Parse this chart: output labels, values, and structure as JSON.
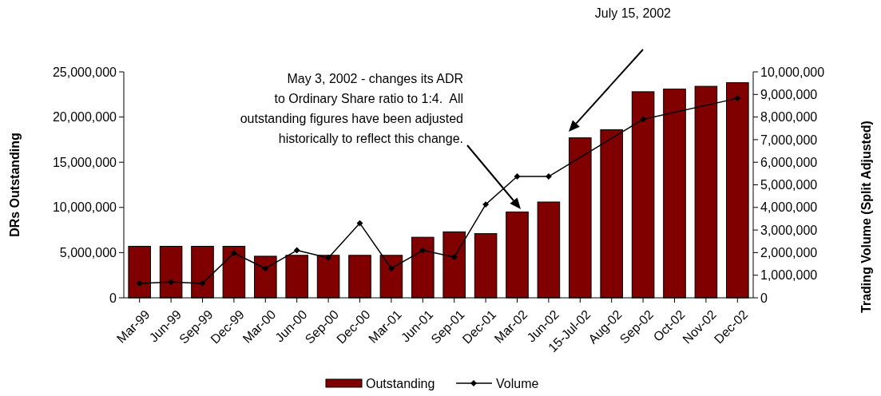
{
  "chart_data": {
    "type": "bar",
    "ylabel": "DRs Outstanding",
    "y2label": "Trading Volume (Split Adjusted)",
    "categories": [
      "Mar-99",
      "Jun-99",
      "Sep-99",
      "Dec-99",
      "Mar-00",
      "Jun-00",
      "Sep-00",
      "Dec-00",
      "Mar-01",
      "Jun-01",
      "Sep-01",
      "Dec-01",
      "Mar-02",
      "Jun-02",
      "15-Jul-02",
      "Aug-02",
      "Sep-02",
      "Oct-02",
      "Nov-02",
      "Dec-02"
    ],
    "series": [
      {
        "name": "Outstanding",
        "type": "bar",
        "color": "#800000",
        "values": [
          5700000,
          5700000,
          5700000,
          5700000,
          4600000,
          4700000,
          4700000,
          4700000,
          4700000,
          6700000,
          7300000,
          7100000,
          9500000,
          10600000,
          17700000,
          18600000,
          22800000,
          23100000,
          23400000,
          23800000
        ]
      },
      {
        "name": "Volume",
        "type": "line",
        "axis": "y2",
        "color": "#000000",
        "marker": "diamond",
        "x": [
          "Mar-99",
          "Jun-99",
          "Sep-99",
          "Dec-99",
          "Mar-00",
          "Jun-00",
          "Sep-00",
          "Dec-00",
          "Mar-01",
          "Jun-01",
          "Sep-01",
          "Dec-01",
          "Mar-02",
          "Jun-02",
          "Sep-02",
          "Dec-02"
        ],
        "values": [
          640000,
          700000,
          640000,
          1980000,
          1300000,
          2100000,
          1770000,
          3300000,
          1300000,
          2100000,
          1800000,
          4130000,
          5370000,
          5370000,
          7900000,
          8830000
        ]
      }
    ],
    "ylim": [
      0,
      25000000
    ],
    "yticks": [
      {
        "value": 0,
        "label": "0"
      },
      {
        "value": 5000000,
        "label": "5,000,000"
      },
      {
        "value": 10000000,
        "label": "10,000,000"
      },
      {
        "value": 15000000,
        "label": "15,000,000"
      },
      {
        "value": 20000000,
        "label": "20,000,000"
      },
      {
        "value": 25000000,
        "label": "25,000,000"
      }
    ],
    "y2lim": [
      0,
      10000000
    ],
    "y2ticks": [
      {
        "value": 0,
        "label": "0"
      },
      {
        "value": 1000000,
        "label": "1,000,000"
      },
      {
        "value": 2000000,
        "label": "2,000,000"
      },
      {
        "value": 3000000,
        "label": "3,000,000"
      },
      {
        "value": 4000000,
        "label": "4,000,000"
      },
      {
        "value": 5000000,
        "label": "5,000,000"
      },
      {
        "value": 6000000,
        "label": "6,000,000"
      },
      {
        "value": 7000000,
        "label": "7,000,000"
      },
      {
        "value": 8000000,
        "label": "8,000,000"
      },
      {
        "value": 9000000,
        "label": "9,000,000"
      },
      {
        "value": 10000000,
        "label": "10,000,000"
      }
    ],
    "annotations": [
      "July 15, 2002",
      "May 3, 2002 - changes its ADR\nto Ordinary Share ratio to 1:4.  All\noutstanding figures have been adjusted\nhistorically to reflect this change."
    ],
    "legend": "bottom",
    "grid": false
  }
}
